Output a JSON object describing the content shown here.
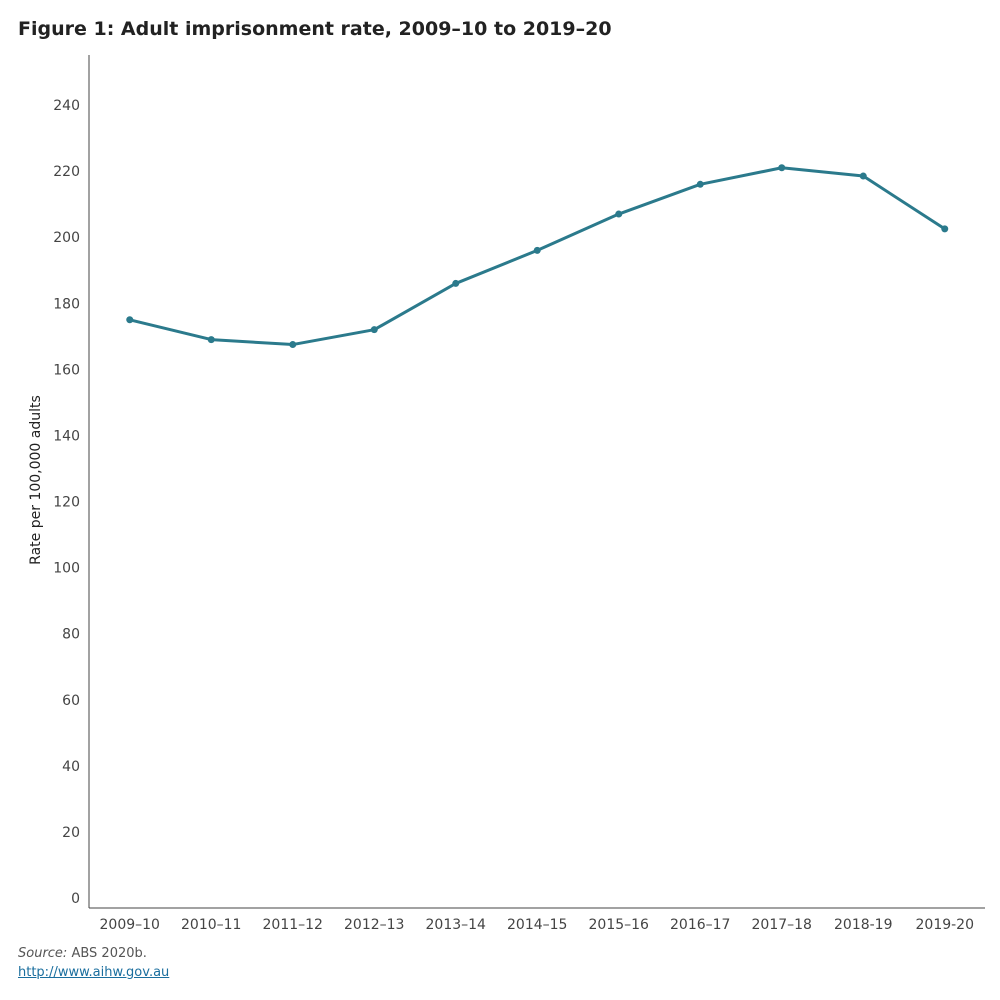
{
  "title": "Figure 1: Adult imprisonment rate, 2009–10 to 2019–20",
  "source": {
    "label": "Source:",
    "text": "ABS 2020b."
  },
  "link": "http://www.aihw.gov.au",
  "chart_data": {
    "type": "line",
    "title": "Figure 1: Adult imprisonment rate, 2009–10 to 2019–20",
    "xlabel": "",
    "ylabel": "Rate per 100,000 adults",
    "categories": [
      "2009–10",
      "2010–11",
      "2011–12",
      "2012–13",
      "2013–14",
      "2014–15",
      "2015–16",
      "2016–17",
      "2017–18",
      "2018-19",
      "2019-20"
    ],
    "series": [
      {
        "values": [
          175,
          169,
          167.5,
          172,
          186,
          196,
          207,
          216,
          221,
          218.5,
          202.5
        ],
        "color": "#2b7a8c"
      }
    ],
    "ylim": [
      0,
      250
    ],
    "yticks": [
      0,
      20,
      40,
      60,
      80,
      100,
      120,
      140,
      160,
      180,
      200,
      220,
      240
    ],
    "grid": false,
    "legend": "none"
  }
}
